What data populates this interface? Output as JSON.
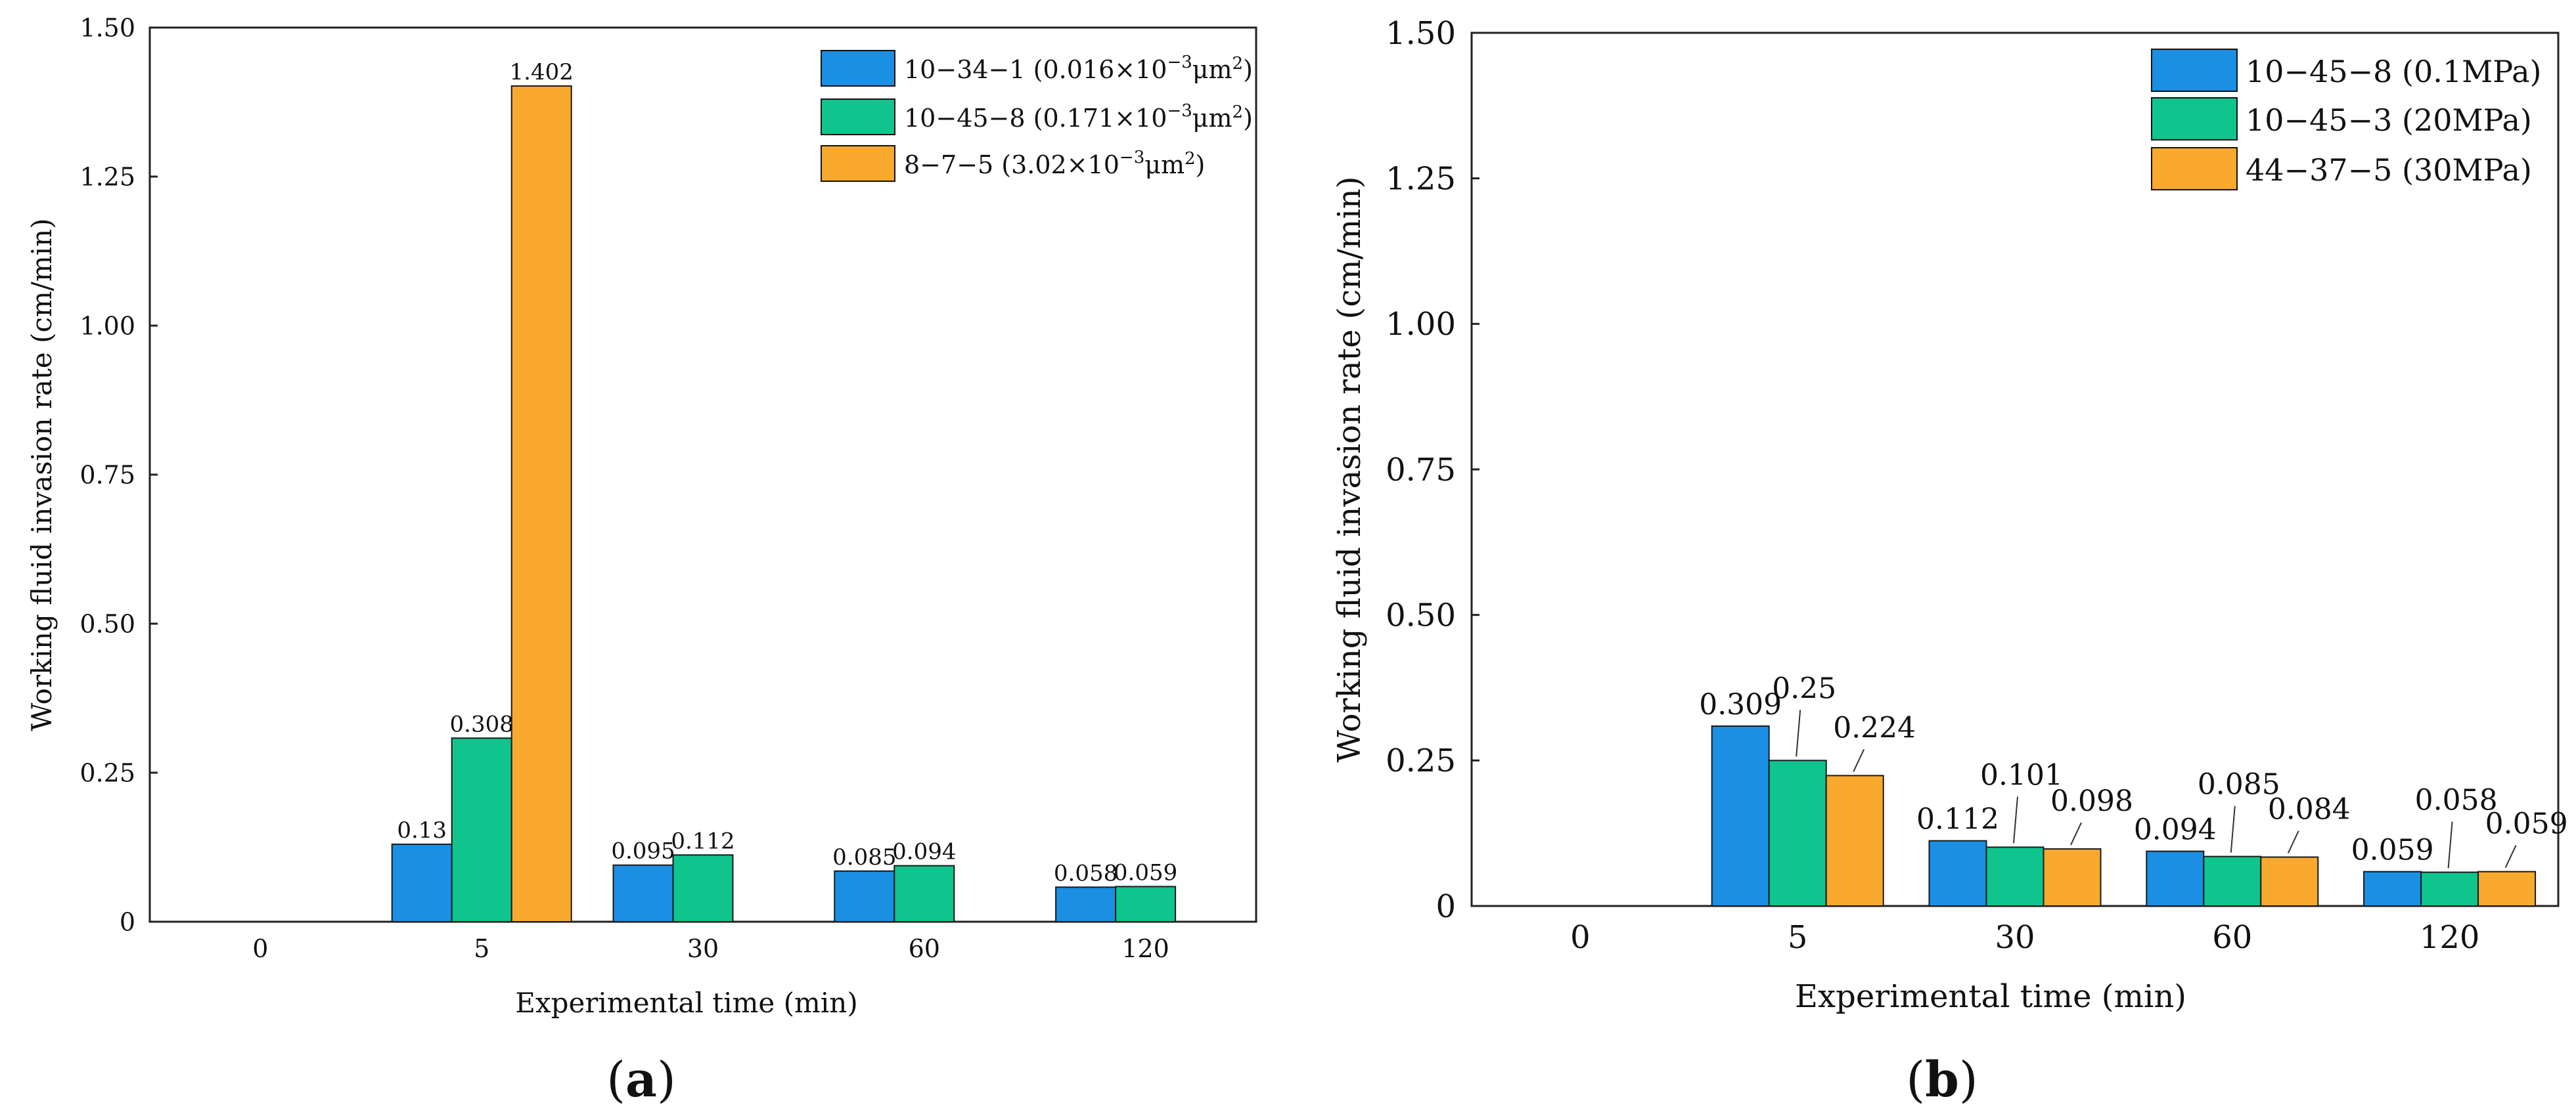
{
  "chart_data": [
    {
      "type": "bar",
      "panel_label": "a",
      "title": "",
      "xlabel": "Experimental time (min)",
      "ylabel": "Working fluid invasion rate (cm/min)",
      "ylim": [
        0,
        1.5
      ],
      "yticks": [
        "0",
        "0.25",
        "0.50",
        "0.75",
        "1.00",
        "1.25",
        "1.50"
      ],
      "ytick_values": [
        0,
        0.25,
        0.5,
        0.75,
        1.0,
        1.25,
        1.5
      ],
      "categories": [
        "0",
        "5",
        "30",
        "60",
        "120"
      ],
      "legend_position": "top-right",
      "series": [
        {
          "name": "10−34−1 (0.016×10⁻³μm²)",
          "name_prefix": "10−34−1 (0.016×10",
          "name_exp": "−3",
          "name_unit": "μm",
          "name_exp2": "2",
          "name_close": ")",
          "color": "#1a8fe3",
          "values": [
            null,
            0.13,
            0.095,
            0.085,
            0.058
          ],
          "labels": [
            "",
            "0.13",
            "0.095",
            "0.085",
            "0.058"
          ]
        },
        {
          "name": "10−45−8 (0.171×10⁻³μm²)",
          "name_prefix": "10−45−8 (0.171×10",
          "name_exp": "−3",
          "name_unit": "μm",
          "name_exp2": "2",
          "name_close": ")",
          "color": "#10c48e",
          "values": [
            null,
            0.308,
            0.112,
            0.094,
            0.059
          ],
          "labels": [
            "",
            "0.308",
            "0.112",
            "0.094",
            "0.059"
          ]
        },
        {
          "name": "8−7−5 (3.02×10⁻³μm²)",
          "name_prefix": "8−7−5 (3.02×10",
          "name_exp": "−3",
          "name_unit": "μm",
          "name_exp2": "2",
          "name_close": ")",
          "color": "#f8a92e",
          "values": [
            null,
            1.402,
            null,
            null,
            null
          ],
          "labels": [
            "",
            "1.402",
            "",
            "",
            ""
          ]
        }
      ]
    },
    {
      "type": "bar",
      "panel_label": "b",
      "title": "",
      "xlabel": "Experimental time (min)",
      "ylabel": "Working fluid invasion rate (cm/min)",
      "ylim": [
        0,
        1.5
      ],
      "yticks": [
        "0",
        "0.25",
        "0.50",
        "0.75",
        "1.00",
        "1.25",
        "1.50"
      ],
      "ytick_values": [
        0,
        0.25,
        0.5,
        0.75,
        1.0,
        1.25,
        1.5
      ],
      "categories": [
        "0",
        "5",
        "30",
        "60",
        "120"
      ],
      "legend_position": "top-right",
      "series": [
        {
          "name": "10−45−8 (0.1MPa)",
          "color": "#1a8fe3",
          "values": [
            null,
            0.309,
            0.112,
            0.094,
            0.059
          ],
          "labels": [
            "",
            "0.309",
            "0.112",
            "0.094",
            "0.059"
          ]
        },
        {
          "name": "10−45−3 (20MPa)",
          "color": "#10c48e",
          "values": [
            null,
            0.25,
            0.101,
            0.085,
            0.058
          ],
          "labels": [
            "",
            "0.25",
            "0.101",
            "0.085",
            "0.058"
          ]
        },
        {
          "name": "44−37−5 (30MPa)",
          "color": "#f8a92e",
          "values": [
            null,
            0.224,
            0.098,
            0.084,
            0.059
          ],
          "labels": [
            "",
            "0.224",
            "0.098",
            "0.084",
            "0.059"
          ]
        }
      ]
    }
  ]
}
